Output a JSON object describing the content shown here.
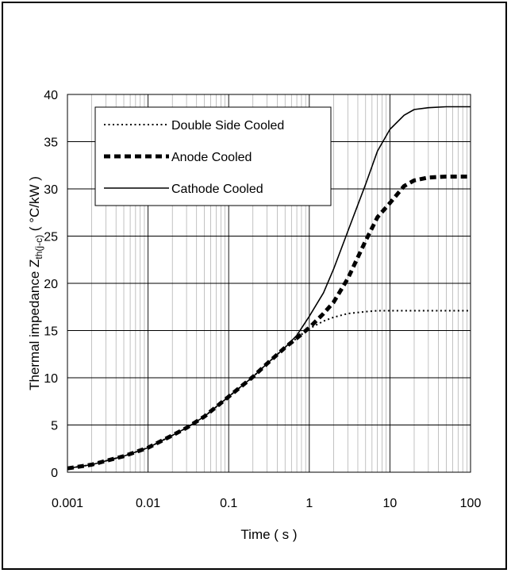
{
  "chart_data": {
    "type": "line",
    "title": "",
    "xlabel": "Time ( s )",
    "ylabel": {
      "prefix": "Thermal impedance Z",
      "subscript": "th(j-c)",
      "suffix": " ( °C/kW )"
    },
    "xscale": "log",
    "xlim": [
      0.001,
      100
    ],
    "ylim": [
      0,
      40
    ],
    "x_ticks": [
      0.001,
      0.01,
      0.1,
      1,
      10,
      100
    ],
    "x_tick_labels": [
      "0.001",
      "0.01",
      "0.1",
      "1",
      "10",
      "100"
    ],
    "y_ticks": [
      0,
      5,
      10,
      15,
      20,
      25,
      30,
      35,
      40
    ],
    "y_tick_labels": [
      "0",
      "5",
      "10",
      "15",
      "20",
      "25",
      "30",
      "35",
      "40"
    ],
    "grid": true,
    "legend_position": "top-left",
    "series": [
      {
        "name": "Double Side Cooled",
        "style": "dotted",
        "x": [
          0.001,
          0.002,
          0.003,
          0.005,
          0.01,
          0.02,
          0.03,
          0.05,
          0.1,
          0.2,
          0.3,
          0.5,
          0.7,
          1,
          1.5,
          2,
          3,
          5,
          7,
          10,
          20,
          50,
          100
        ],
        "y": [
          0.4,
          0.8,
          1.2,
          1.7,
          2.6,
          3.9,
          4.7,
          5.9,
          8.0,
          10.1,
          11.5,
          13.2,
          14.2,
          15.2,
          16.0,
          16.4,
          16.8,
          17.0,
          17.1,
          17.1,
          17.1,
          17.1,
          17.1
        ]
      },
      {
        "name": "Anode Cooled",
        "style": "dashed-thick",
        "x": [
          0.001,
          0.002,
          0.003,
          0.005,
          0.01,
          0.02,
          0.03,
          0.05,
          0.1,
          0.2,
          0.3,
          0.5,
          0.7,
          1,
          1.5,
          2,
          3,
          5,
          7,
          10,
          15,
          20,
          30,
          50,
          100
        ],
        "y": [
          0.4,
          0.8,
          1.2,
          1.7,
          2.6,
          3.9,
          4.7,
          5.9,
          8.0,
          10.1,
          11.5,
          13.2,
          14.2,
          15.3,
          16.8,
          18.0,
          20.5,
          24.5,
          27.0,
          28.5,
          30.3,
          30.9,
          31.2,
          31.3,
          31.3
        ]
      },
      {
        "name": "Cathode Cooled",
        "style": "solid",
        "x": [
          0.001,
          0.002,
          0.003,
          0.005,
          0.01,
          0.02,
          0.03,
          0.05,
          0.1,
          0.2,
          0.3,
          0.5,
          0.7,
          1,
          1.5,
          2,
          3,
          5,
          7,
          10,
          15,
          20,
          30,
          50,
          100
        ],
        "y": [
          0.4,
          0.8,
          1.2,
          1.7,
          2.6,
          3.9,
          4.7,
          5.9,
          8.0,
          10.1,
          11.5,
          13.2,
          14.5,
          16.5,
          19.0,
          21.5,
          25.5,
          30.5,
          34.0,
          36.3,
          37.8,
          38.4,
          38.6,
          38.7,
          38.7
        ]
      }
    ]
  }
}
